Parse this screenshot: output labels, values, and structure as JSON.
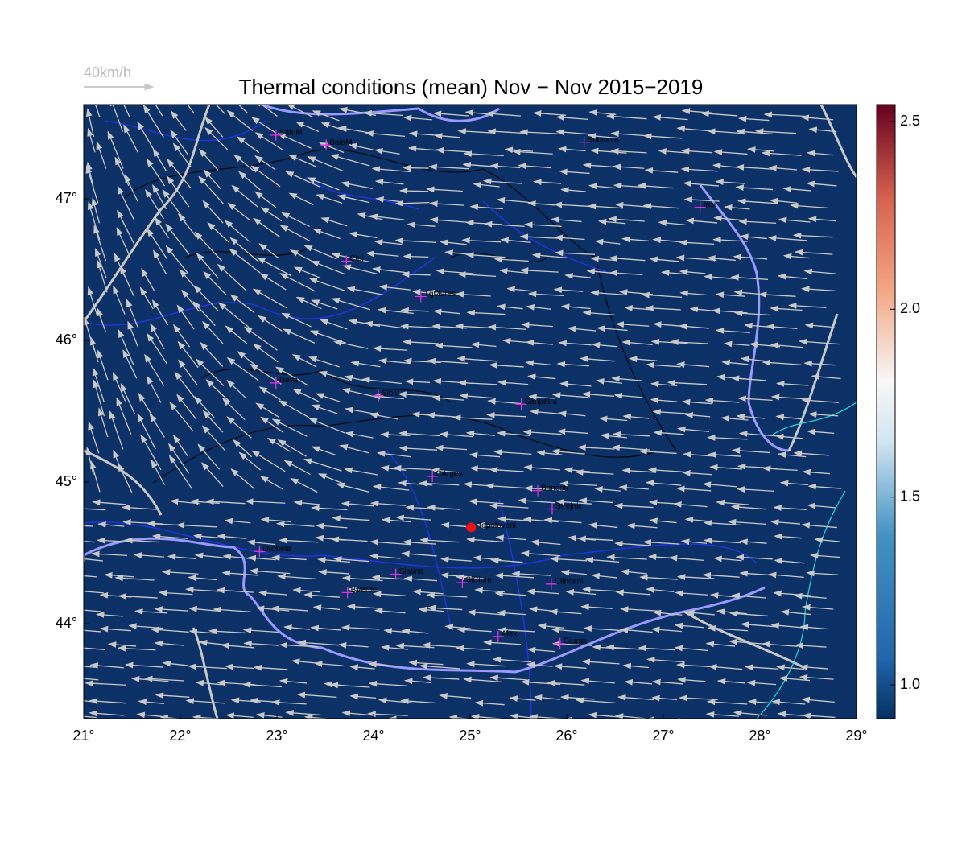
{
  "chart_data": {
    "type": "map",
    "title": "Thermal conditions (mean) Nov − Nov  2015−2019",
    "vector_key": "40km/h",
    "xlim": [
      21,
      29
    ],
    "ylim": [
      43.33,
      47.665
    ],
    "xticks": [
      {
        "value": 21,
        "label": "21°"
      },
      {
        "value": 22,
        "label": "22°"
      },
      {
        "value": 23,
        "label": "23°"
      },
      {
        "value": 24,
        "label": "24°"
      },
      {
        "value": 25,
        "label": "25°"
      },
      {
        "value": 26,
        "label": "26°"
      },
      {
        "value": 27,
        "label": "27°"
      },
      {
        "value": 28,
        "label": "28°"
      },
      {
        "value": 29,
        "label": "29°"
      }
    ],
    "yticks": [
      {
        "value": 44,
        "label": "44°"
      },
      {
        "value": 45,
        "label": "45°"
      },
      {
        "value": 46,
        "label": "46°"
      },
      {
        "value": 47,
        "label": "47°"
      }
    ],
    "colorbar": {
      "lim": [
        0.91,
        2.545
      ],
      "ticks": [
        {
          "value": 1,
          "label": "1.0"
        },
        1.5,
        {
          "value": 2,
          "label": "2.0"
        },
        2.5
      ]
    },
    "stations": [
      {
        "name": "SatuM",
        "lon": 22.99,
        "lat": 47.45
      },
      {
        "name": "BaiaM",
        "lon": 23.51,
        "lat": 47.38
      },
      {
        "name": "Suceava",
        "lon": 26.18,
        "lat": 47.4
      },
      {
        "name": "Iasi",
        "lon": 27.38,
        "lat": 46.94
      },
      {
        "name": "Cluj",
        "lon": 23.72,
        "lat": 46.56
      },
      {
        "name": "TgMures",
        "lon": 24.49,
        "lat": 46.31
      },
      {
        "name": "Deva",
        "lon": 22.99,
        "lat": 45.7
      },
      {
        "name": "Sibiu",
        "lon": 24.05,
        "lat": 45.61
      },
      {
        "name": "Sanpetru",
        "lon": 25.53,
        "lat": 45.55
      },
      {
        "name": "CArges",
        "lon": 24.61,
        "lat": 45.04
      },
      {
        "name": "Banesti",
        "lon": 25.7,
        "lat": 44.94
      },
      {
        "name": "Strejnic",
        "lon": 25.85,
        "lat": 44.81
      },
      {
        "name": "Drobeta",
        "lon": 22.82,
        "lat": 44.51
      },
      {
        "name": "Slatina",
        "lon": 24.23,
        "lat": 44.35
      },
      {
        "name": "SlCium",
        "lon": 24.92,
        "lat": 44.29
      },
      {
        "name": "Clinceni",
        "lon": 25.84,
        "lat": 44.28
      },
      {
        "name": "BVerde",
        "lon": 23.73,
        "lat": 44.22
      },
      {
        "name": "Alex",
        "lon": 25.29,
        "lat": 43.91
      },
      {
        "name": "Giurgiu",
        "lon": 25.93,
        "lat": 43.86
      }
    ],
    "highlight": {
      "name": "Topoloveni",
      "lon": 25.01,
      "lat": 44.68,
      "color": "#ee1111"
    },
    "station_color": "#dd33dd",
    "background": "#0b3166"
  }
}
